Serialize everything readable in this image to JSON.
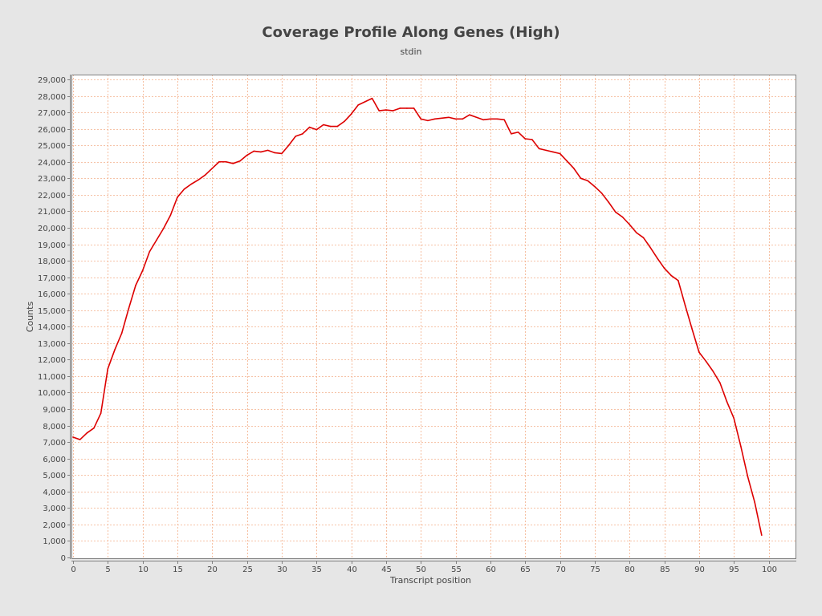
{
  "chart_data": {
    "type": "line",
    "title": "Coverage Profile Along Genes (High)",
    "subtitle": "stdin",
    "xlabel": "Transcript position",
    "ylabel": "Counts",
    "xlim": [
      0,
      104
    ],
    "ylim": [
      0,
      29400
    ],
    "grid": true,
    "legend": "none",
    "line_color": "#dd0000",
    "grid_color": "#f4b08a",
    "plot_background": "#ffffff",
    "x_ticks": [
      0,
      5,
      10,
      15,
      20,
      25,
      30,
      35,
      40,
      45,
      50,
      55,
      60,
      65,
      70,
      75,
      80,
      85,
      90,
      95,
      100
    ],
    "x_tick_labels": [
      "0",
      "5",
      "10",
      "15",
      "20",
      "25",
      "30",
      "35",
      "40",
      "45",
      "50",
      "55",
      "60",
      "65",
      "70",
      "75",
      "80",
      "85",
      "90",
      "95",
      "100"
    ],
    "y_ticks": [
      0,
      1000,
      2000,
      3000,
      4000,
      5000,
      6000,
      7000,
      8000,
      9000,
      10000,
      11000,
      12000,
      13000,
      14000,
      15000,
      16000,
      17000,
      18000,
      19000,
      20000,
      21000,
      22000,
      23000,
      24000,
      25000,
      26000,
      27000,
      28000,
      29000
    ],
    "y_tick_labels": [
      "0",
      "1,000",
      "2,000",
      "3,000",
      "4,000",
      "5,000",
      "6,000",
      "7,000",
      "8,000",
      "9,000",
      "10,000",
      "11,000",
      "12,000",
      "13,000",
      "14,000",
      "15,000",
      "16,000",
      "17,000",
      "18,000",
      "19,000",
      "20,000",
      "21,000",
      "22,000",
      "23,000",
      "24,000",
      "25,000",
      "26,000",
      "27,000",
      "28,000",
      "29,000"
    ],
    "x": [
      0,
      1,
      2,
      3,
      4,
      5,
      6,
      7,
      8,
      9,
      10,
      11,
      12,
      13,
      14,
      15,
      16,
      17,
      18,
      19,
      20,
      21,
      22,
      23,
      24,
      25,
      26,
      27,
      28,
      29,
      30,
      31,
      32,
      33,
      34,
      35,
      36,
      37,
      38,
      39,
      40,
      41,
      42,
      43,
      44,
      45,
      46,
      47,
      48,
      49,
      50,
      51,
      52,
      53,
      54,
      55,
      56,
      57,
      58,
      59,
      60,
      61,
      62,
      63,
      64,
      65,
      66,
      67,
      68,
      69,
      70,
      71,
      72,
      73,
      74,
      75,
      76,
      77,
      78,
      79,
      80,
      81,
      82,
      83,
      84,
      85,
      86,
      87,
      88,
      89,
      90,
      91,
      92,
      93,
      94,
      95,
      96,
      97,
      98,
      99
    ],
    "series": [
      {
        "values": [
          7300,
          7150,
          7550,
          7850,
          8750,
          11450,
          12600,
          13600,
          15100,
          16500,
          17400,
          18550,
          19250,
          19950,
          20750,
          21850,
          22350,
          22650,
          22900,
          23200,
          23600,
          24000,
          24000,
          23900,
          24050,
          24400,
          24650,
          24600,
          24700,
          24550,
          24500,
          25000,
          25550,
          25700,
          26100,
          25950,
          26250,
          26150,
          26150,
          26450,
          26900,
          27450,
          27650,
          27850,
          27100,
          27150,
          27100,
          27250,
          27250,
          27250,
          26600,
          26500,
          26600,
          26650,
          26700,
          26600,
          26600,
          26850,
          26700,
          26550,
          26600,
          26600,
          26550,
          25700,
          25800,
          25400,
          25350,
          24800,
          24700,
          24600,
          24500,
          24050,
          23600,
          23000,
          22850,
          22500,
          22100,
          21550,
          20950,
          20650,
          20200,
          19700,
          19400,
          18800,
          18150,
          17550,
          17100,
          16800,
          15300,
          13850,
          12450,
          11900,
          11300,
          10600,
          9450,
          8450,
          6750,
          4900,
          3350,
          1350
        ]
      }
    ]
  }
}
